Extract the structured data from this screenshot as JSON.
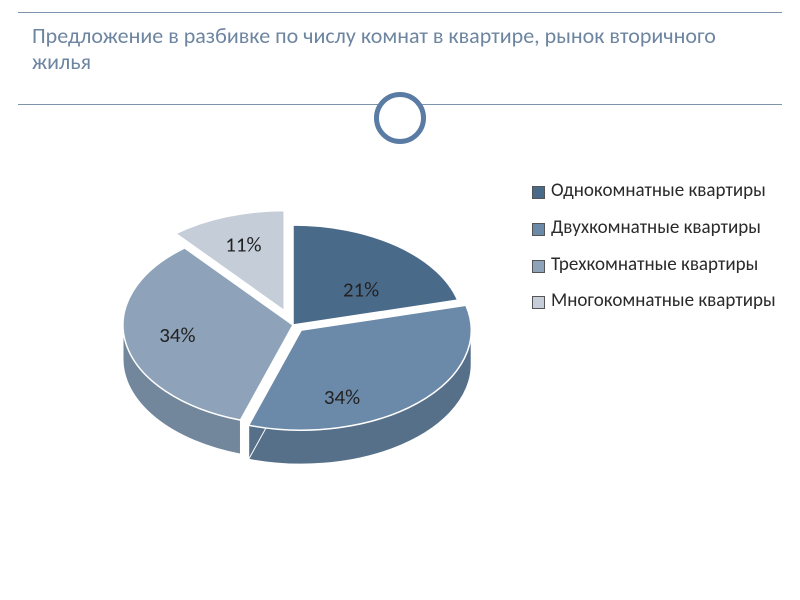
{
  "title": "Предложение в разбивке по числу комнат в квартире, рынок вторичного жилья",
  "chart": {
    "type": "pie-3d-exploded",
    "background_color": "#ffffff",
    "label_fontsize": 21,
    "legend_fontsize": 19,
    "title_color": "#6d85a0",
    "accent_ring_color": "#5a7ba3",
    "slices": [
      {
        "label": "Однокомнатные квартиры",
        "value": 21,
        "pct": "21%",
        "top_color": "#4a6a8a",
        "side_color": "#3b5670",
        "explode": 0
      },
      {
        "label": "Двухкомнатные квартиры",
        "value": 34,
        "pct": "34%",
        "top_color": "#6b89a8",
        "side_color": "#56708a",
        "explode": 12
      },
      {
        "label": "Трехкомнатные квартиры",
        "value": 34,
        "pct": "34%",
        "top_color": "#8ea2b9",
        "side_color": "#72869c",
        "explode": 0
      },
      {
        "label": "Многокомнатные квартиры",
        "value": 11,
        "pct": "11%",
        "top_color": "#c4cdd8",
        "side_color": "#9fabba",
        "explode": 26
      }
    ]
  }
}
